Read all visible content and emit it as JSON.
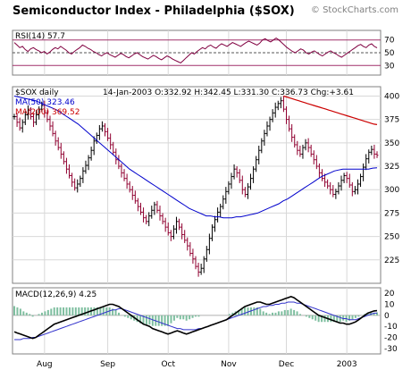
{
  "header": {
    "title": "Semiconductor Index - Philadelphia ($SOX)",
    "copyright": "© StockCharts.com"
  },
  "chart_data": [
    {
      "panel": "rsi",
      "type": "line",
      "label": "RSI(14) 57.7",
      "ylim": [
        15,
        85
      ],
      "ticks": [
        70,
        50,
        30
      ],
      "reference_lines": [
        70,
        50,
        30
      ],
      "values": [
        66,
        62,
        58,
        60,
        55,
        52,
        56,
        58,
        55,
        53,
        50,
        52,
        48,
        51,
        55,
        58,
        56,
        60,
        57,
        54,
        50,
        48,
        52,
        55,
        58,
        62,
        60,
        57,
        55,
        52,
        50,
        47,
        45,
        48,
        50,
        47,
        45,
        43,
        46,
        49,
        47,
        44,
        42,
        45,
        48,
        50,
        47,
        44,
        42,
        40,
        43,
        46,
        44,
        41,
        39,
        42,
        45,
        43,
        40,
        38,
        36,
        34,
        38,
        42,
        46,
        50,
        48,
        52,
        55,
        58,
        56,
        60,
        62,
        59,
        57,
        61,
        64,
        62,
        60,
        63,
        66,
        64,
        62,
        60,
        63,
        66,
        68,
        66,
        64,
        62,
        65,
        70,
        72,
        69,
        67,
        70,
        73,
        70,
        66,
        62,
        58,
        55,
        52,
        50,
        53,
        56,
        54,
        50,
        48,
        51,
        53,
        50,
        47,
        45,
        48,
        51,
        53,
        50,
        48,
        45,
        43,
        46,
        49,
        52,
        55,
        58,
        61,
        63,
        60,
        58,
        62,
        64,
        60,
        57.7
      ]
    },
    {
      "panel": "price",
      "type": "ohlc",
      "legend": [
        {
          "text": "$SOX daily",
          "color": "#000000"
        },
        {
          "text": "MA(50) 323.46",
          "color": "#0000cc"
        },
        {
          "text": "MA(200) 369.52",
          "color": "#cc0000"
        }
      ],
      "quote": "14-Jan-2003 O:332.92 H:342.45 L:331.30 C:336.73 Chg:+3.61",
      "ylim": [
        200,
        410
      ],
      "ticks": [
        400,
        375,
        350,
        325,
        300,
        275,
        250,
        225
      ],
      "x_labels": [
        "Aug",
        "Sep",
        "Oct",
        "Nov",
        "Dec",
        "2003"
      ],
      "x_label_index": [
        11,
        34,
        56,
        78,
        99,
        121
      ],
      "close": [
        378,
        372,
        366,
        372,
        380,
        385,
        378,
        372,
        380,
        386,
        390,
        382,
        375,
        368,
        360,
        352,
        345,
        338,
        330,
        322,
        315,
        308,
        302,
        306,
        312,
        320,
        326,
        334,
        342,
        352,
        358,
        365,
        368,
        362,
        355,
        348,
        340,
        332,
        325,
        318,
        312,
        306,
        300,
        294,
        288,
        282,
        276,
        270,
        266,
        272,
        278,
        284,
        278,
        272,
        266,
        260,
        254,
        250,
        258,
        266,
        260,
        252,
        246,
        240,
        232,
        226,
        218,
        212,
        216,
        226,
        236,
        248,
        260,
        268,
        276,
        282,
        290,
        298,
        306,
        314,
        322,
        318,
        310,
        300,
        295,
        303,
        312,
        322,
        332,
        342,
        352,
        360,
        368,
        375,
        382,
        388,
        392,
        395,
        386,
        375,
        365,
        356,
        348,
        342,
        338,
        345,
        350,
        345,
        338,
        332,
        325,
        318,
        312,
        308,
        304,
        300,
        295,
        298,
        304,
        310,
        315,
        312,
        305,
        298,
        300,
        306,
        314,
        324,
        333,
        340,
        343,
        338,
        336.73
      ],
      "ma50": [
        400,
        399,
        398,
        397,
        396,
        395,
        393,
        391,
        389,
        387,
        385,
        382,
        379,
        376,
        373,
        370,
        366,
        362,
        358,
        354,
        350,
        346,
        342,
        338,
        334,
        330,
        326,
        322,
        319,
        316,
        313,
        310,
        307,
        304,
        301,
        298,
        295,
        292,
        289,
        286,
        283,
        280,
        278,
        276,
        274,
        272,
        272,
        271,
        271,
        270,
        270,
        270,
        271,
        271,
        272,
        273,
        274,
        275,
        277,
        279,
        281,
        283,
        285,
        288,
        290,
        293,
        296,
        299,
        302,
        305,
        308,
        311,
        314,
        316,
        318,
        320,
        321,
        322,
        322,
        322,
        322,
        322,
        322,
        322,
        323,
        323.46
      ],
      "ma200": [
        400,
        399,
        398,
        397,
        396,
        395,
        394,
        393,
        392,
        391,
        390,
        389,
        388,
        387,
        386,
        385,
        384,
        383,
        382,
        381,
        380,
        379,
        378,
        377,
        376,
        375,
        374,
        373,
        372,
        371,
        370,
        369.52
      ]
    },
    {
      "panel": "macd",
      "type": "line",
      "label": "MACD(12,26,9) 4.25",
      "ylim": [
        -35,
        25
      ],
      "ticks": [
        20,
        10,
        0,
        -10,
        -20,
        -30
      ],
      "macd": [
        -15,
        -16,
        -17,
        -18,
        -19,
        -20,
        -21,
        -20,
        -18,
        -16,
        -14,
        -12,
        -10,
        -8,
        -7,
        -6,
        -5,
        -4,
        -3,
        -2,
        -1,
        0,
        1,
        2,
        3,
        4,
        5,
        6,
        7,
        8,
        9,
        10,
        10,
        9,
        8,
        6,
        4,
        2,
        0,
        -2,
        -4,
        -6,
        -8,
        -9,
        -10,
        -12,
        -13,
        -14,
        -15,
        -16,
        -17,
        -16,
        -15,
        -14,
        -15,
        -16,
        -17,
        -16,
        -15,
        -14,
        -13,
        -12,
        -11,
        -10,
        -9,
        -8,
        -7,
        -6,
        -5,
        -4,
        -2,
        0,
        2,
        4,
        6,
        8,
        9,
        10,
        11,
        12,
        12,
        11,
        10,
        10,
        11,
        12,
        13,
        14,
        15,
        16,
        17,
        16,
        14,
        12,
        10,
        8,
        6,
        4,
        2,
        0,
        -1,
        -2,
        -3,
        -4,
        -5,
        -6,
        -7,
        -7,
        -8,
        -8,
        -7,
        -6,
        -4,
        -2,
        0,
        2,
        3,
        4,
        4.25
      ],
      "signal": [
        -22,
        -22,
        -22,
        -21,
        -21,
        -21,
        -20,
        -20,
        -19,
        -18,
        -17,
        -16,
        -15,
        -14,
        -13,
        -12,
        -11,
        -10,
        -9,
        -8,
        -7,
        -6,
        -5,
        -4,
        -3,
        -2,
        -1,
        0,
        1,
        2,
        3,
        4,
        5,
        5,
        6,
        6,
        5,
        4,
        3,
        2,
        1,
        0,
        -1,
        -2,
        -3,
        -4,
        -5,
        -6,
        -7,
        -8,
        -9,
        -10,
        -11,
        -12,
        -12,
        -13,
        -13,
        -13,
        -13,
        -13,
        -12,
        -12,
        -11,
        -10,
        -9,
        -8,
        -7,
        -6,
        -5,
        -4,
        -3,
        -2,
        -1,
        0,
        1,
        2,
        3,
        4,
        5,
        6,
        7,
        8,
        8,
        9,
        9,
        10,
        10,
        11,
        11,
        12,
        12,
        12,
        11,
        11,
        10,
        9,
        8,
        7,
        6,
        5,
        4,
        3,
        2,
        1,
        0,
        -1,
        -2,
        -3,
        -3,
        -4,
        -4,
        -4,
        -3,
        -2,
        -1,
        0,
        1,
        2,
        2
      ]
    }
  ]
}
